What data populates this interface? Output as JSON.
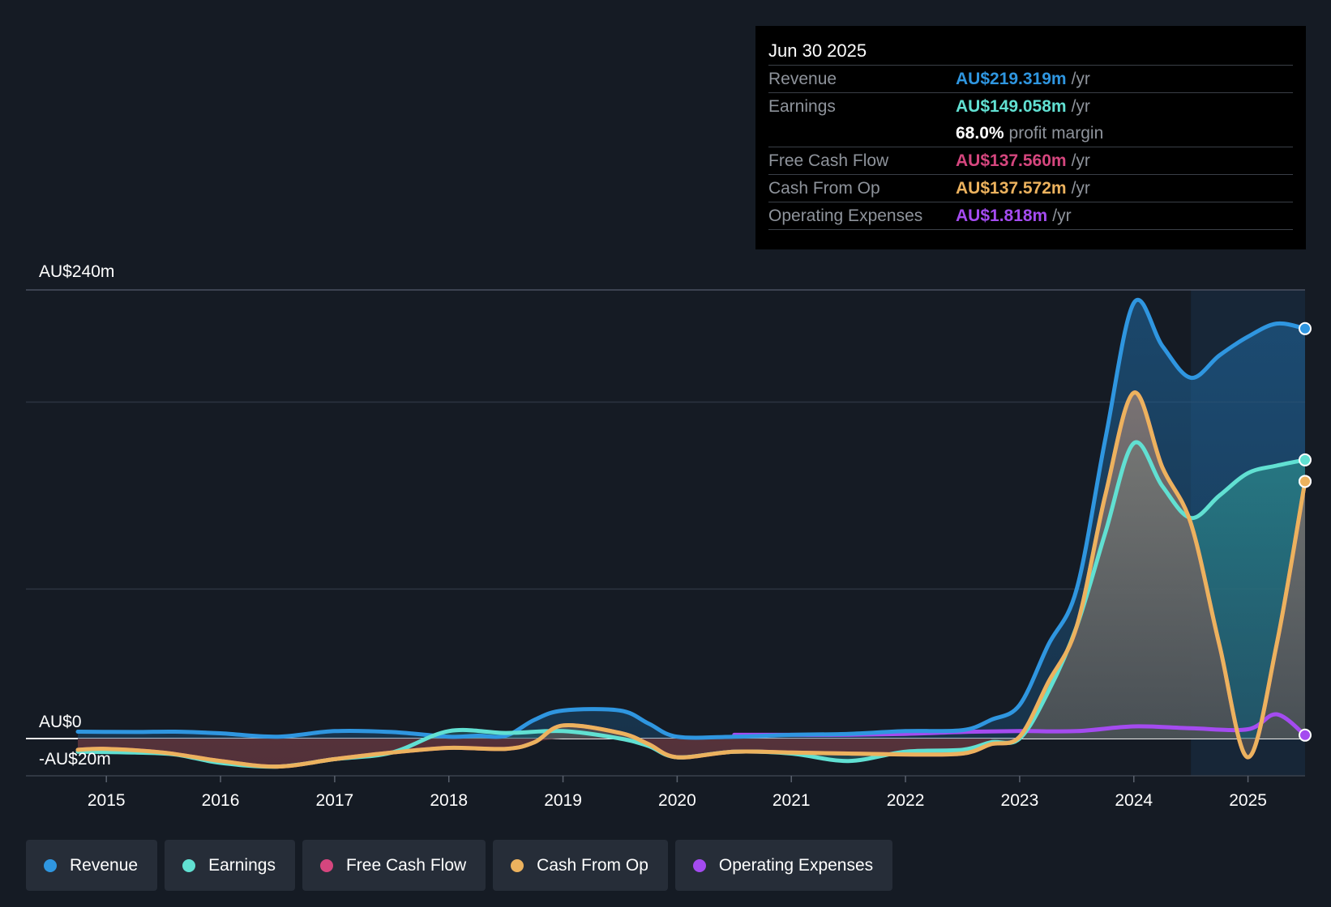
{
  "tooltip": {
    "date": "Jun 30 2025",
    "rows": [
      {
        "label": "Revenue",
        "value": "AU$219.319m",
        "unit": "/yr",
        "color": "#2f96e0"
      },
      {
        "label": "Earnings",
        "value": "AU$149.058m",
        "unit": "/yr",
        "color": "#61e0d2"
      },
      {
        "margin_value": "68.0%",
        "margin_label": "profit margin"
      },
      {
        "label": "Free Cash Flow",
        "value": "AU$137.560m",
        "unit": "/yr",
        "color": "#d5467e"
      },
      {
        "label": "Cash From Op",
        "value": "AU$137.572m",
        "unit": "/yr",
        "color": "#ecb25e"
      },
      {
        "label": "Operating Expenses",
        "value": "AU$1.818m",
        "unit": "/yr",
        "color": "#a44bf0"
      }
    ]
  },
  "legend": [
    {
      "label": "Revenue",
      "color": "#2f96e0"
    },
    {
      "label": "Earnings",
      "color": "#61e0d2"
    },
    {
      "label": "Free Cash Flow",
      "color": "#d5467e"
    },
    {
      "label": "Cash From Op",
      "color": "#ecb25e"
    },
    {
      "label": "Operating Expenses",
      "color": "#a44bf0"
    }
  ],
  "chart_data": {
    "type": "line",
    "title": "",
    "xlabel": "",
    "ylabel": "",
    "y_tick_labels": [
      {
        "value": 240,
        "label": "AU$240m"
      },
      {
        "value": 0,
        "label": "AU$0"
      },
      {
        "value": -20,
        "label": "-AU$20m"
      }
    ],
    "ylim": [
      -20,
      240
    ],
    "xlim": [
      2014.75,
      2025.5
    ],
    "x_ticks": [
      2015,
      2016,
      2017,
      2018,
      2019,
      2020,
      2021,
      2022,
      2023,
      2024,
      2025
    ],
    "forecast_start": 2024.5,
    "series": [
      {
        "name": "Revenue",
        "color": "#2f96e0",
        "points": [
          [
            2014.75,
            3.7
          ],
          [
            2015.25,
            3.5
          ],
          [
            2015.6,
            3.7
          ],
          [
            2016.0,
            2.8
          ],
          [
            2016.5,
            1
          ],
          [
            2017.0,
            4
          ],
          [
            2017.5,
            3.5
          ],
          [
            2018.0,
            1
          ],
          [
            2018.25,
            1.5
          ],
          [
            2018.5,
            1.5
          ],
          [
            2018.75,
            10
          ],
          [
            2019.0,
            15
          ],
          [
            2019.5,
            15
          ],
          [
            2019.75,
            8
          ],
          [
            2020.0,
            1
          ],
          [
            2020.5,
            1
          ],
          [
            2021.0,
            2
          ],
          [
            2021.5,
            2.5
          ],
          [
            2022.0,
            4
          ],
          [
            2022.5,
            4.5
          ],
          [
            2022.75,
            10
          ],
          [
            2023.0,
            18
          ],
          [
            2023.25,
            50
          ],
          [
            2023.5,
            80
          ],
          [
            2023.75,
            160
          ],
          [
            2024.0,
            233
          ],
          [
            2024.25,
            210
          ],
          [
            2024.5,
            193
          ],
          [
            2024.75,
            205
          ],
          [
            2025.0,
            215
          ],
          [
            2025.25,
            222
          ],
          [
            2025.5,
            219.3
          ]
        ]
      },
      {
        "name": "Earnings",
        "color": "#61e0d2",
        "points": [
          [
            2014.75,
            -7
          ],
          [
            2015.25,
            -7.5
          ],
          [
            2015.6,
            -8.5
          ],
          [
            2016.0,
            -13
          ],
          [
            2016.5,
            -15
          ],
          [
            2017.0,
            -11
          ],
          [
            2017.5,
            -7.5
          ],
          [
            2018.0,
            4
          ],
          [
            2018.5,
            3
          ],
          [
            2019.0,
            4
          ],
          [
            2019.5,
            0
          ],
          [
            2019.75,
            -4
          ],
          [
            2020.0,
            -10
          ],
          [
            2020.5,
            -7
          ],
          [
            2021.0,
            -8
          ],
          [
            2021.5,
            -12
          ],
          [
            2022.0,
            -7
          ],
          [
            2022.5,
            -6
          ],
          [
            2022.75,
            -2
          ],
          [
            2023.0,
            0
          ],
          [
            2023.25,
            25
          ],
          [
            2023.5,
            60
          ],
          [
            2023.75,
            110
          ],
          [
            2024.0,
            158
          ],
          [
            2024.25,
            135
          ],
          [
            2024.5,
            118
          ],
          [
            2024.75,
            130
          ],
          [
            2025.0,
            142
          ],
          [
            2025.25,
            146
          ],
          [
            2025.5,
            149.06
          ]
        ]
      },
      {
        "name": "Free Cash Flow",
        "color": "#d5467e",
        "points": [
          [
            2014.75,
            -6
          ],
          [
            2015.0,
            -5.5
          ],
          [
            2015.5,
            -7.5
          ],
          [
            2016.0,
            -12
          ],
          [
            2016.5,
            -15
          ],
          [
            2017.0,
            -11
          ],
          [
            2017.5,
            -7.5
          ],
          [
            2018.0,
            -5
          ],
          [
            2018.5,
            -5.5
          ],
          [
            2018.75,
            -2
          ],
          [
            2019.0,
            7
          ],
          [
            2019.5,
            3
          ],
          [
            2019.75,
            -3
          ],
          [
            2020.0,
            -10
          ],
          [
            2020.5,
            -7
          ],
          [
            2021.0,
            -7.5
          ],
          [
            2021.5,
            -8
          ],
          [
            2022.0,
            -8.5
          ],
          [
            2022.5,
            -8
          ],
          [
            2022.75,
            -3
          ],
          [
            2023.0,
            1
          ],
          [
            2023.25,
            30
          ],
          [
            2023.5,
            60
          ],
          [
            2023.75,
            130
          ],
          [
            2024.0,
            185
          ],
          [
            2024.25,
            145
          ],
          [
            2024.5,
            115
          ],
          [
            2024.75,
            50
          ],
          [
            2025.0,
            -10
          ],
          [
            2025.25,
            50
          ],
          [
            2025.5,
            137.56
          ]
        ]
      },
      {
        "name": "Cash From Op",
        "color": "#ecb25e",
        "points": [
          [
            2014.75,
            -6
          ],
          [
            2015.0,
            -5.5
          ],
          [
            2015.5,
            -7.5
          ],
          [
            2016.0,
            -12
          ],
          [
            2016.5,
            -15
          ],
          [
            2017.0,
            -11
          ],
          [
            2017.5,
            -7.5
          ],
          [
            2018.0,
            -5
          ],
          [
            2018.5,
            -5.5
          ],
          [
            2018.75,
            -2
          ],
          [
            2019.0,
            7
          ],
          [
            2019.5,
            3
          ],
          [
            2019.75,
            -3
          ],
          [
            2020.0,
            -10
          ],
          [
            2020.5,
            -7
          ],
          [
            2021.0,
            -7.5
          ],
          [
            2021.5,
            -8
          ],
          [
            2022.0,
            -8.5
          ],
          [
            2022.5,
            -8
          ],
          [
            2022.75,
            -3
          ],
          [
            2023.0,
            1
          ],
          [
            2023.25,
            30
          ],
          [
            2023.5,
            60
          ],
          [
            2023.75,
            130
          ],
          [
            2024.0,
            185
          ],
          [
            2024.25,
            145
          ],
          [
            2024.5,
            115
          ],
          [
            2024.75,
            50
          ],
          [
            2025.0,
            -10
          ],
          [
            2025.25,
            50
          ],
          [
            2025.5,
            137.57
          ]
        ]
      },
      {
        "name": "Operating Expenses",
        "color": "#a44bf0",
        "points": [
          [
            2020.5,
            2
          ],
          [
            2021.0,
            2
          ],
          [
            2021.5,
            2
          ],
          [
            2022.0,
            2.5
          ],
          [
            2022.5,
            3.5
          ],
          [
            2023.0,
            4
          ],
          [
            2023.5,
            4
          ],
          [
            2024.0,
            6.5
          ],
          [
            2024.5,
            5.5
          ],
          [
            2025.0,
            5
          ],
          [
            2025.25,
            13
          ],
          [
            2025.5,
            1.82
          ]
        ]
      }
    ]
  }
}
